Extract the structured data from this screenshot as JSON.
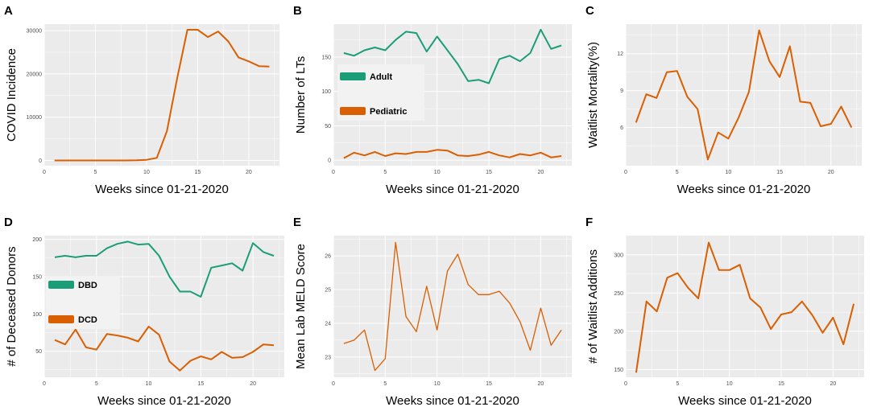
{
  "colors": {
    "panel_bg": "#ebebeb",
    "grid": "#ffffff",
    "green": "#1b9e77",
    "orange": "#d95f02"
  },
  "chart_data": [
    {
      "panel": "A",
      "type": "line",
      "xlabel": "Weeks since 01-21-2020",
      "ylabel": "COVID Incidence",
      "xlim": [
        0,
        23
      ],
      "ylim": [
        -1200,
        31500
      ],
      "xticks": [
        0,
        5,
        10,
        15,
        20
      ],
      "yticks": [
        0,
        10000,
        20000,
        30000
      ],
      "ytick_labels": [
        "0",
        "10000",
        "20000",
        "30000"
      ],
      "series": [
        {
          "name": "COVID Incidence",
          "color": "#d95f02",
          "x": [
            1,
            2,
            3,
            4,
            5,
            6,
            7,
            8,
            9,
            10,
            11,
            12,
            13,
            14,
            15,
            16,
            17,
            18,
            19,
            20,
            21,
            22
          ],
          "y": [
            0,
            0,
            0,
            0,
            0,
            0,
            0,
            0,
            50,
            150,
            600,
            6800,
            19000,
            30200,
            30200,
            28500,
            29800,
            27500,
            23800,
            22900,
            21800,
            21700
          ]
        }
      ]
    },
    {
      "panel": "B",
      "type": "line",
      "xlabel": "Weeks since 01-21-2020",
      "ylabel": "Number of LTs",
      "xlim": [
        0,
        23
      ],
      "ylim": [
        -8,
        198
      ],
      "xticks": [
        0,
        5,
        10,
        15,
        20
      ],
      "yticks": [
        0,
        50,
        100,
        150
      ],
      "ytick_labels": [
        "0",
        "50",
        "100",
        "150"
      ],
      "legend": [
        "Adult",
        "Pediatric"
      ],
      "series": [
        {
          "name": "Adult",
          "color": "#1b9e77",
          "x": [
            1,
            2,
            3,
            4,
            5,
            6,
            7,
            8,
            9,
            10,
            11,
            12,
            13,
            14,
            15,
            16,
            17,
            18,
            19,
            20,
            21,
            22
          ],
          "y": [
            156,
            152,
            160,
            164,
            160,
            175,
            187,
            185,
            158,
            180,
            160,
            140,
            115,
            117,
            112,
            147,
            152,
            144,
            156,
            190,
            162,
            167
          ]
        },
        {
          "name": "Pediatric",
          "color": "#d95f02",
          "x": [
            1,
            2,
            3,
            4,
            5,
            6,
            7,
            8,
            9,
            10,
            11,
            12,
            13,
            14,
            15,
            16,
            17,
            18,
            19,
            20,
            21,
            22
          ],
          "y": [
            3,
            11,
            7,
            12,
            6,
            10,
            9,
            12,
            12,
            15,
            14,
            7,
            6,
            8,
            12,
            7,
            4,
            9,
            7,
            11,
            4,
            6
          ]
        }
      ]
    },
    {
      "panel": "C",
      "type": "line",
      "xlabel": "Weeks since 01-21-2020",
      "ylabel": "Waitlist Mortality(%)",
      "xlim": [
        0,
        23
      ],
      "ylim": [
        2.9,
        14.4
      ],
      "xticks": [
        0,
        5,
        10,
        15,
        20
      ],
      "yticks": [
        6,
        9,
        12
      ],
      "ytick_labels": [
        "6",
        "9",
        "12"
      ],
      "series": [
        {
          "name": "Waitlist Mortality",
          "color": "#d95f02",
          "x": [
            1,
            2,
            3,
            4,
            5,
            6,
            7,
            8,
            9,
            10,
            11,
            12,
            13,
            14,
            15,
            16,
            17,
            18,
            19,
            20,
            21,
            22
          ],
          "y": [
            6.4,
            8.7,
            8.4,
            10.5,
            10.6,
            8.5,
            7.5,
            3.4,
            5.6,
            5.1,
            6.8,
            8.9,
            13.9,
            11.4,
            10.1,
            12.6,
            8.1,
            8.0,
            6.1,
            6.3,
            7.7,
            6.0
          ]
        }
      ]
    },
    {
      "panel": "D",
      "type": "line",
      "xlabel": "Weeks since 01-21-2020",
      "ylabel": "# of Deceased Donors",
      "xlim": [
        0,
        23
      ],
      "ylim": [
        15,
        205
      ],
      "xticks": [
        0,
        5,
        10,
        15,
        20
      ],
      "yticks": [
        50,
        100,
        150,
        200
      ],
      "ytick_labels": [
        "50",
        "100",
        "150",
        "200"
      ],
      "legend": [
        "DBD",
        "DCD"
      ],
      "series": [
        {
          "name": "DBD",
          "color": "#1b9e77",
          "x": [
            1,
            2,
            3,
            4,
            5,
            6,
            7,
            8,
            9,
            10,
            11,
            12,
            13,
            14,
            15,
            16,
            17,
            18,
            19,
            20,
            21,
            22
          ],
          "y": [
            176,
            178,
            176,
            178,
            178,
            188,
            194,
            197,
            193,
            194,
            178,
            150,
            130,
            130,
            123,
            162,
            165,
            168,
            158,
            195,
            183,
            178
          ]
        },
        {
          "name": "DCD",
          "color": "#d95f02",
          "x": [
            1,
            2,
            3,
            4,
            5,
            6,
            7,
            8,
            9,
            10,
            11,
            12,
            13,
            14,
            15,
            16,
            17,
            18,
            19,
            20,
            21,
            22
          ],
          "y": [
            65,
            59,
            79,
            55,
            52,
            73,
            71,
            68,
            63,
            83,
            72,
            36,
            24,
            37,
            43,
            39,
            49,
            41,
            42,
            49,
            59,
            58
          ]
        }
      ]
    },
    {
      "panel": "E",
      "type": "line",
      "xlabel": "Weeks since 01-21-2020",
      "ylabel": "Mean Lab MELD Score",
      "xlim": [
        0,
        23
      ],
      "ylim": [
        22.4,
        26.6
      ],
      "xticks": [
        0,
        5,
        10,
        15,
        20
      ],
      "yticks": [
        23,
        24,
        25,
        26
      ],
      "ytick_labels": [
        "23",
        "24",
        "25",
        "26"
      ],
      "series": [
        {
          "name": "Mean Lab MELD Score",
          "color": "#d95f02",
          "x": [
            1,
            2,
            3,
            4,
            5,
            6,
            7,
            8,
            9,
            10,
            11,
            12,
            13,
            14,
            15,
            16,
            17,
            18,
            19,
            20,
            21,
            22
          ],
          "y": [
            23.4,
            23.5,
            23.8,
            22.6,
            22.95,
            26.4,
            24.2,
            23.75,
            25.1,
            23.8,
            25.55,
            26.05,
            25.15,
            24.85,
            24.85,
            24.95,
            24.6,
            24.05,
            23.2,
            24.45,
            23.35,
            23.8
          ]
        }
      ]
    },
    {
      "panel": "F",
      "type": "line",
      "xlabel": "Weeks since 01-21-2020",
      "ylabel": "# of Waitlist Additions",
      "xlim": [
        0,
        23
      ],
      "ylim": [
        140,
        325
      ],
      "xticks": [
        0,
        5,
        10,
        15,
        20
      ],
      "yticks": [
        150,
        200,
        250,
        300
      ],
      "ytick_labels": [
        "150",
        "200",
        "250",
        "300"
      ],
      "series": [
        {
          "name": "Waitlist Additions",
          "color": "#d95f02",
          "x": [
            1,
            2,
            3,
            4,
            5,
            6,
            7,
            8,
            9,
            10,
            11,
            12,
            13,
            14,
            15,
            16,
            17,
            18,
            19,
            20,
            21,
            22
          ],
          "y": [
            146,
            239,
            226,
            270,
            276,
            257,
            243,
            316,
            280,
            280,
            287,
            243,
            231,
            203,
            222,
            225,
            239,
            221,
            198,
            218,
            183,
            236
          ]
        }
      ]
    }
  ]
}
